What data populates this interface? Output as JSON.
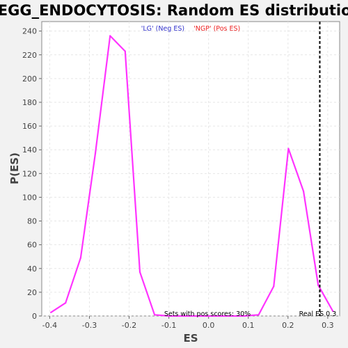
{
  "chart_data": {
    "type": "line",
    "title": "KEGG_ENDOCYTOSIS: Random ES distribution",
    "xlabel": "ES",
    "ylabel": "P(ES)",
    "xlim": [
      -0.42,
      0.33
    ],
    "ylim": [
      0,
      248
    ],
    "x_ticks": [
      "-0.4",
      "-0.3",
      "-0.2",
      "-0.1",
      "0.0",
      "0.1",
      "0.2",
      "0.3"
    ],
    "y_ticks": [
      "0",
      "20",
      "40",
      "60",
      "80",
      "100",
      "120",
      "140",
      "160",
      "180",
      "200",
      "220",
      "240"
    ],
    "grid": true,
    "legend": {
      "placement": "top-center",
      "neg": {
        "label": "'LG' (Neg ES)",
        "color": "#3333cc"
      },
      "pos": {
        "label": "'NGP' (Pos ES)",
        "color": "#ee2222"
      }
    },
    "series": [
      {
        "color": "#ff33ff",
        "x": [
          -0.397,
          -0.36,
          -0.322,
          -0.285,
          -0.248,
          -0.21,
          -0.173,
          -0.136,
          -0.099,
          -0.061,
          -0.024,
          0.014,
          0.051,
          0.089,
          0.126,
          0.164,
          0.201,
          0.239,
          0.276,
          0.313
        ],
        "y": [
          3,
          11,
          49,
          137,
          236,
          223,
          37,
          1,
          0,
          0,
          0,
          0,
          0,
          0,
          1,
          25,
          141,
          105,
          26,
          4
        ]
      }
    ],
    "real_es": {
      "x": 0.28,
      "label": "Real ES 0.3"
    },
    "annotation": "Sets with pos scores: 30%"
  }
}
